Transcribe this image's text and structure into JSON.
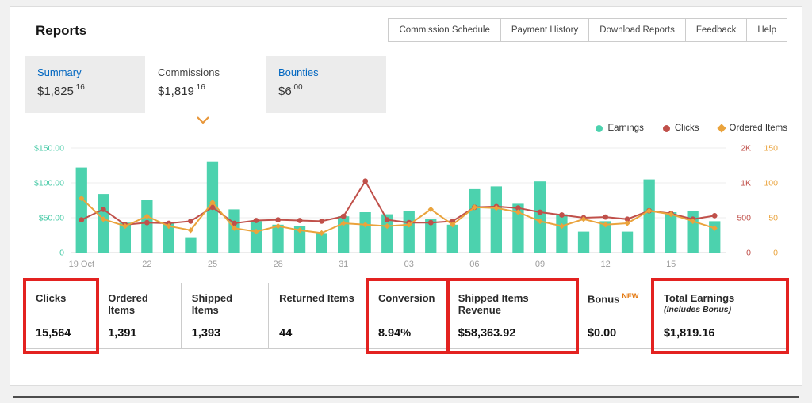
{
  "header": {
    "title": "Reports",
    "nav": [
      {
        "label": "Commission Schedule"
      },
      {
        "label": "Payment History"
      },
      {
        "label": "Download Reports"
      },
      {
        "label": "Feedback"
      },
      {
        "label": "Help"
      }
    ]
  },
  "tabs": [
    {
      "label": "Summary",
      "amount_main": "$1,825",
      "amount_cents": ".16",
      "selected": false
    },
    {
      "label": "Commissions",
      "amount_main": "$1,819",
      "amount_cents": ".16",
      "selected": true
    },
    {
      "label": "Bounties",
      "amount_main": "$6",
      "amount_cents": ".00",
      "selected": false
    }
  ],
  "legend": [
    {
      "label": "Earnings",
      "color": "#4cd2ae",
      "marker": "circle"
    },
    {
      "label": "Clicks",
      "color": "#c0504a",
      "marker": "circle"
    },
    {
      "label": "Ordered Items",
      "color": "#eaa33c",
      "marker": "diamond"
    }
  ],
  "chart_data": {
    "type": "combo-bar-line",
    "x": [
      "19 Oct",
      "20",
      "21",
      "22",
      "23",
      "24",
      "25",
      "26",
      "27",
      "28",
      "29",
      "30",
      "31",
      "01",
      "02",
      "03",
      "04",
      "05",
      "06",
      "07",
      "08",
      "09",
      "10",
      "11",
      "12",
      "13",
      "14",
      "15",
      "16",
      "17"
    ],
    "x_tick_every": 3,
    "x_tick_labels": [
      "19 Oct",
      "22",
      "25",
      "28",
      "31",
      "03",
      "06",
      "09",
      "12",
      "15"
    ],
    "series": [
      {
        "name": "Earnings",
        "type": "bar",
        "axis": "left",
        "color": "#4cd2ae",
        "values": [
          122,
          84,
          43,
          75,
          44,
          22,
          131,
          62,
          45,
          40,
          38,
          28,
          52,
          58,
          55,
          60,
          48,
          40,
          91,
          95,
          70,
          102,
          55,
          30,
          45,
          30,
          105,
          58,
          60,
          45
        ]
      },
      {
        "name": "Clicks",
        "type": "line",
        "marker": "circle",
        "axis": "right_clicks",
        "color": "#c0504a",
        "values": [
          470,
          620,
          400,
          430,
          420,
          450,
          650,
          420,
          460,
          470,
          460,
          450,
          520,
          1050,
          470,
          430,
          430,
          450,
          650,
          660,
          640,
          580,
          540,
          500,
          510,
          480,
          600,
          560,
          480,
          530
        ]
      },
      {
        "name": "Ordered Items",
        "type": "line",
        "marker": "diamond",
        "axis": "right_ordered",
        "color": "#eaa33c",
        "values": [
          78,
          48,
          38,
          52,
          38,
          32,
          72,
          35,
          30,
          38,
          32,
          28,
          42,
          40,
          38,
          40,
          62,
          40,
          65,
          64,
          58,
          45,
          38,
          48,
          40,
          42,
          60,
          55,
          45,
          35
        ]
      }
    ],
    "axes": {
      "left": {
        "color": "#44c9a5",
        "tick_labels": [
          "$150.00",
          "$100.00",
          "$50.00",
          "0"
        ],
        "tick_values": [
          0,
          50,
          100,
          150
        ]
      },
      "right_clicks": {
        "color": "#c0504a",
        "tick_labels": [
          "2K",
          "1K",
          "500",
          "0"
        ],
        "tick_values": [
          0,
          500,
          1000,
          2000
        ]
      },
      "right_ordered": {
        "color": "#eaa33c",
        "tick_labels": [
          "150",
          "100",
          "50",
          "0"
        ],
        "tick_values": [
          0,
          50,
          100,
          150
        ]
      }
    },
    "grid": true,
    "legend_position": "top-right"
  },
  "stats": [
    {
      "label": "Clicks",
      "value": "15,564",
      "highlighted": true
    },
    {
      "label": "Ordered Items",
      "value": "1,391",
      "highlighted": false
    },
    {
      "label": "Shipped Items",
      "value": "1,393",
      "highlighted": false
    },
    {
      "label": "Returned Items",
      "value": "44",
      "highlighted": false
    },
    {
      "label": "Conversion",
      "value": "8.94%",
      "highlighted": true
    },
    {
      "label": "Shipped Items Revenue",
      "value": "$58,363.92",
      "highlighted": true
    },
    {
      "label": "Bonus",
      "badge": "NEW",
      "value": "$0.00",
      "highlighted": false
    },
    {
      "label": "Total Earnings",
      "sublabel": "(Includes Bonus)",
      "value": "$1,819.16",
      "highlighted": true
    }
  ]
}
